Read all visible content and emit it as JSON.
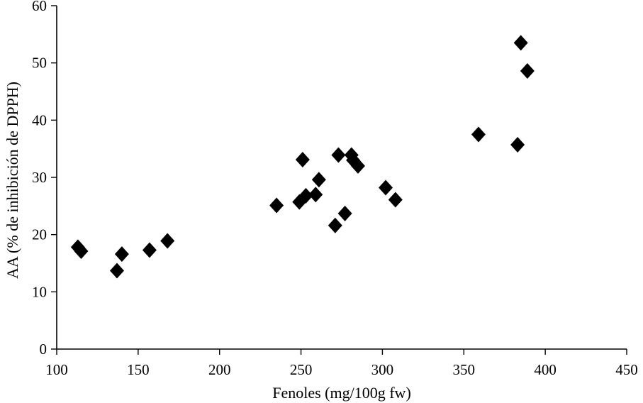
{
  "chart_data": {
    "type": "scatter",
    "title": "",
    "xlabel": "Fenoles (mg/100g fw)",
    "ylabel": "AA (% de inhibición de DPPH)",
    "xlim": [
      100,
      450
    ],
    "ylim": [
      0,
      60
    ],
    "x_ticks": [
      100,
      150,
      200,
      250,
      300,
      350,
      400,
      450
    ],
    "y_ticks": [
      0,
      10,
      20,
      30,
      40,
      50,
      60
    ],
    "grid": false,
    "legend": "none",
    "marker": "diamond",
    "marker_color": "#000000",
    "series": [
      {
        "points": [
          {
            "x": 113,
            "y": 17.8
          },
          {
            "x": 115,
            "y": 17.1
          },
          {
            "x": 137,
            "y": 13.7
          },
          {
            "x": 140,
            "y": 16.6
          },
          {
            "x": 157,
            "y": 17.3
          },
          {
            "x": 168,
            "y": 18.9
          },
          {
            "x": 235,
            "y": 25.1
          },
          {
            "x": 249,
            "y": 25.7
          },
          {
            "x": 251,
            "y": 33.1
          },
          {
            "x": 253,
            "y": 26.8
          },
          {
            "x": 259,
            "y": 27.0
          },
          {
            "x": 261,
            "y": 29.6
          },
          {
            "x": 271,
            "y": 21.6
          },
          {
            "x": 273,
            "y": 33.9
          },
          {
            "x": 277,
            "y": 23.7
          },
          {
            "x": 281,
            "y": 33.9
          },
          {
            "x": 282,
            "y": 33.0
          },
          {
            "x": 285,
            "y": 32.0
          },
          {
            "x": 302,
            "y": 28.2
          },
          {
            "x": 308,
            "y": 26.1
          },
          {
            "x": 359,
            "y": 37.5
          },
          {
            "x": 383,
            "y": 35.7
          },
          {
            "x": 385,
            "y": 53.5
          },
          {
            "x": 389,
            "y": 48.6
          }
        ]
      }
    ]
  }
}
